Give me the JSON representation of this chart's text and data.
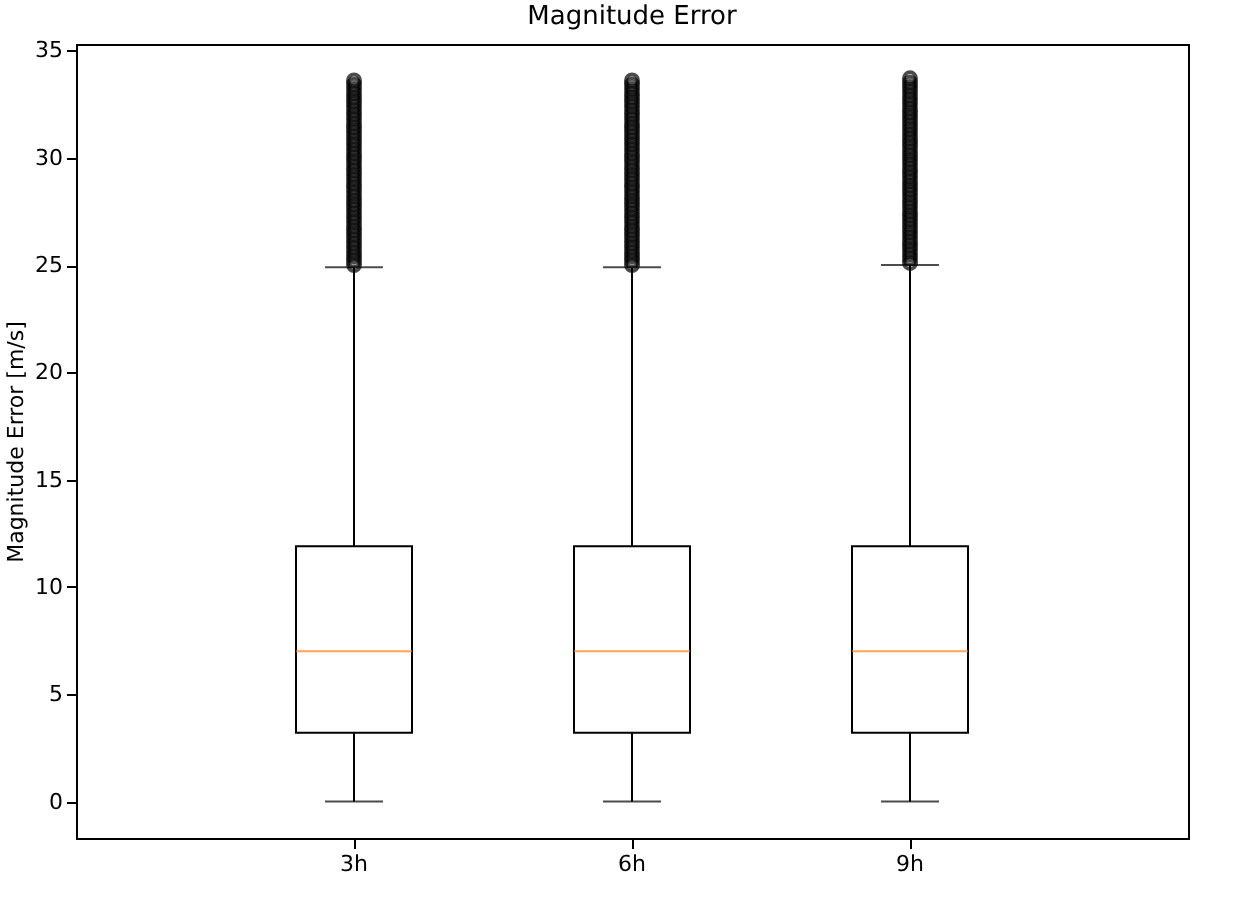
{
  "chart_data": {
    "type": "box",
    "title": "Magnitude Error",
    "ylabel": "Magnitude Error [m/s]",
    "categories": [
      "3h",
      "6h",
      "9h"
    ],
    "ylim": [
      -1.7,
      35.3
    ],
    "yticks": [
      0,
      5,
      10,
      15,
      20,
      25,
      30,
      35
    ],
    "grid": false,
    "boxes": [
      {
        "low": 0,
        "q1": 3.2,
        "median": 7.0,
        "q3": 11.9,
        "high": 24.9,
        "outliers": [
          25.0,
          25.2,
          25.4,
          25.6,
          25.8,
          26.0,
          26.2,
          26.4,
          26.6,
          26.8,
          27.0,
          27.2,
          27.4,
          27.6,
          27.8,
          28.0,
          28.2,
          28.4,
          28.6,
          28.8,
          29.0,
          29.2,
          29.4,
          29.6,
          29.8,
          30.0,
          30.2,
          30.4,
          30.6,
          30.8,
          31.0,
          31.2,
          31.4,
          31.6,
          31.8,
          32.0,
          32.2,
          32.4,
          32.6,
          32.8,
          33.0,
          33.2,
          33.4,
          33.6
        ]
      },
      {
        "low": 0,
        "q1": 3.2,
        "median": 7.0,
        "q3": 11.9,
        "high": 24.9,
        "outliers": [
          25.0,
          25.2,
          25.4,
          25.6,
          25.8,
          26.0,
          26.2,
          26.4,
          26.6,
          26.8,
          27.0,
          27.2,
          27.4,
          27.6,
          27.8,
          28.0,
          28.2,
          28.4,
          28.6,
          28.8,
          29.0,
          29.2,
          29.4,
          29.6,
          29.8,
          30.0,
          30.2,
          30.4,
          30.6,
          30.8,
          31.0,
          31.2,
          31.4,
          31.6,
          31.8,
          32.0,
          32.2,
          32.4,
          32.6,
          32.8,
          33.0,
          33.2,
          33.4,
          33.6
        ]
      },
      {
        "low": 0,
        "q1": 3.2,
        "median": 7.0,
        "q3": 11.9,
        "high": 25.0,
        "outliers": [
          25.1,
          25.3,
          25.5,
          25.7,
          25.9,
          26.1,
          26.3,
          26.5,
          26.7,
          26.9,
          27.1,
          27.3,
          27.5,
          27.7,
          27.9,
          28.1,
          28.3,
          28.5,
          28.7,
          28.9,
          29.1,
          29.3,
          29.5,
          29.7,
          29.9,
          30.1,
          30.3,
          30.5,
          30.7,
          30.9,
          31.1,
          31.3,
          31.5,
          31.7,
          31.9,
          32.1,
          32.3,
          32.5,
          32.7,
          32.9,
          33.1,
          33.3,
          33.5,
          33.7
        ]
      }
    ],
    "color": "#000000"
  }
}
